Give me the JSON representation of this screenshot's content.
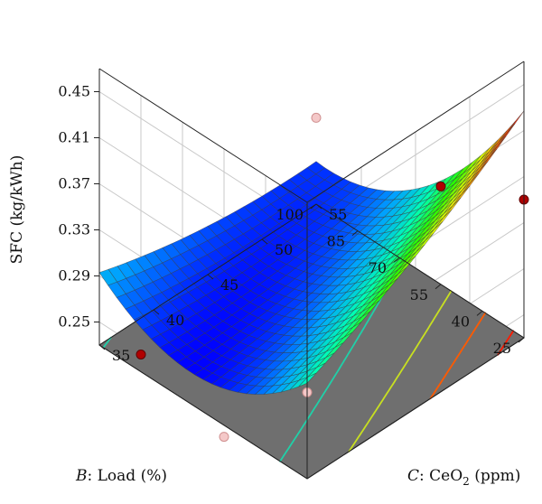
{
  "chart_data": {
    "type": "surface3d",
    "zlabel": "SFC (kg/kWh)",
    "xlabel": {
      "prefix": "B",
      "text": ": Load (%)"
    },
    "ylabel": {
      "prefix": "C",
      "text": ": CeO",
      "sub": "2",
      "suffix": " (ppm)"
    },
    "x": {
      "name": "Load",
      "unit": "%",
      "ticks": [
        25,
        40,
        55,
        70,
        85,
        100
      ],
      "range": [
        25,
        100
      ]
    },
    "y": {
      "name": "CeO2",
      "unit": "ppm",
      "ticks": [
        35,
        40,
        45,
        50,
        55
      ],
      "range": [
        35,
        55
      ]
    },
    "z": {
      "ticks": [
        0.25,
        0.29,
        0.33,
        0.37,
        0.41,
        0.45
      ],
      "range": [
        0.23,
        0.47
      ]
    },
    "floor_color": "#6f6f6f",
    "surface_colormap": [
      "#0000ff",
      "#00a0ff",
      "#00ffb4",
      "#28ff00",
      "#f0ff00",
      "#ff6400",
      "#ff0000"
    ],
    "grid": true,
    "design_points": [
      {
        "load": 25,
        "ceo2": 35,
        "sfc": 0.305,
        "above": false
      },
      {
        "load": 25,
        "ceo2": 55,
        "sfc": 0.35,
        "above": true
      },
      {
        "load": 55,
        "ceo2": 55,
        "sfc": 0.315,
        "above": true
      },
      {
        "load": 100,
        "ceo2": 55,
        "sfc": 0.305,
        "above": false
      },
      {
        "load": 100,
        "ceo2": 40,
        "sfc": 0.255,
        "above": false
      },
      {
        "load": 85,
        "ceo2": 35,
        "sfc": 0.245,
        "above": true
      },
      {
        "load": 55,
        "ceo2": 35,
        "sfc": 0.22,
        "above": false
      }
    ],
    "contours": [
      {
        "level": 0.29,
        "color": "#20d0a8"
      },
      {
        "level": 0.33,
        "color": "#c8e020"
      },
      {
        "level": 0.37,
        "color": "#ff5a00"
      },
      {
        "level": 0.41,
        "color": "#ff1a00"
      },
      {
        "level": 0.45,
        "color": "#e80000"
      }
    ]
  }
}
